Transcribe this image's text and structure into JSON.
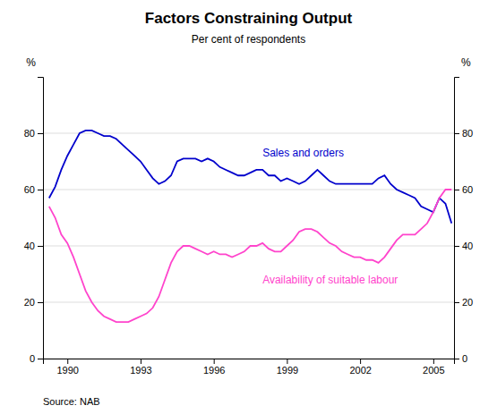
{
  "chart_data": {
    "type": "line",
    "title": "Factors Constraining Output",
    "subtitle": "Per cent of respondents",
    "ylabel": "%",
    "y2label": "%",
    "source": "Source: NAB",
    "x": [
      1989.25,
      1989.5,
      1989.75,
      1990.0,
      1990.25,
      1990.5,
      1990.75,
      1991.0,
      1991.25,
      1991.5,
      1991.75,
      1992.0,
      1992.25,
      1992.5,
      1992.75,
      1993.0,
      1993.25,
      1993.5,
      1993.75,
      1994.0,
      1994.25,
      1994.5,
      1994.75,
      1995.0,
      1995.25,
      1995.5,
      1995.75,
      1996.0,
      1996.25,
      1996.5,
      1996.75,
      1997.0,
      1997.25,
      1997.5,
      1997.75,
      1998.0,
      1998.25,
      1998.5,
      1998.75,
      1999.0,
      1999.25,
      1999.5,
      1999.75,
      2000.0,
      2000.25,
      2000.5,
      2000.75,
      2001.0,
      2001.25,
      2001.5,
      2001.75,
      2002.0,
      2002.25,
      2002.5,
      2002.75,
      2003.0,
      2003.25,
      2003.5,
      2003.75,
      2004.0,
      2004.25,
      2004.5,
      2004.75,
      2005.0,
      2005.25,
      2005.5,
      2005.75
    ],
    "series": [
      {
        "color": "#0000CC",
        "values": [
          57,
          61,
          67,
          72,
          76,
          80,
          81,
          81,
          80,
          79,
          79,
          78,
          76,
          74,
          72,
          70,
          67,
          64,
          62,
          63,
          65,
          70,
          71,
          71,
          71,
          70,
          71,
          70,
          68,
          67,
          66,
          65,
          65,
          66,
          67,
          67,
          65,
          65,
          63,
          64,
          63,
          62,
          63,
          65,
          67,
          65,
          63,
          62,
          62,
          62,
          62,
          62,
          62,
          62,
          64,
          65,
          62,
          60,
          59,
          58,
          57,
          54,
          53,
          52,
          57,
          55,
          48
        ]
      },
      {
        "color": "#FF44CC",
        "values": [
          54,
          50,
          44,
          41,
          36,
          30,
          24,
          20,
          17,
          15,
          14,
          13,
          13,
          13,
          14,
          15,
          16,
          18,
          22,
          28,
          34,
          38,
          40,
          40,
          39,
          38,
          37,
          38,
          37,
          37,
          36,
          37,
          38,
          40,
          40,
          41,
          39,
          38,
          38,
          40,
          42,
          45,
          46,
          46,
          45,
          43,
          41,
          40,
          38,
          37,
          36,
          36,
          35,
          35,
          34,
          36,
          39,
          42,
          44,
          44,
          44,
          46,
          48,
          52,
          57,
          60,
          60
        ]
      }
    ],
    "annotations": [
      {
        "text": "Sales and orders",
        "x": 1998.0,
        "y": 73,
        "color": "#0000CC"
      },
      {
        "text": "Availability of suitable labour",
        "x": 1998.0,
        "y": 28,
        "color": "#FF44CC"
      }
    ],
    "xlim": [
      1989.0,
      2005.85
    ],
    "xticks": [
      1990,
      1993,
      1996,
      1999,
      2002,
      2005
    ],
    "ylim": [
      0,
      100
    ],
    "yticks": [
      0,
      20,
      40,
      60,
      80
    ],
    "y2lim": [
      0,
      100
    ],
    "y2ticks": [
      0,
      20,
      40,
      60,
      80
    ],
    "grid": true
  }
}
